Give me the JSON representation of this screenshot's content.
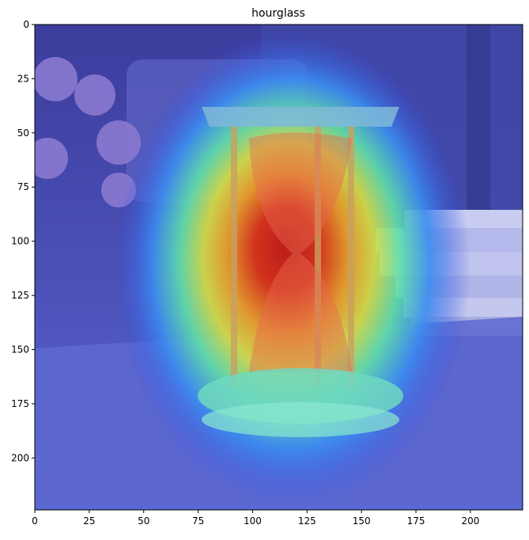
{
  "title": "hourglass",
  "image": {
    "description_icon": "hourglass-heatmap-overlay",
    "palette": {
      "background": "#5258c8",
      "heat_hot": "#d81a10",
      "heat_warm": "#f0c020",
      "heat_mid": "#5de0a0",
      "heat_cool": "#3a6ef0"
    }
  },
  "axes": {
    "x_ticks": [
      "0",
      "25",
      "50",
      "75",
      "100",
      "125",
      "150",
      "175",
      "200"
    ],
    "x_tick_values": [
      0,
      25,
      50,
      75,
      100,
      125,
      150,
      175,
      200
    ],
    "y_ticks": [
      "0",
      "25",
      "50",
      "75",
      "100",
      "125",
      "150",
      "175",
      "200"
    ],
    "y_tick_values": [
      0,
      25,
      50,
      75,
      100,
      125,
      150,
      175,
      200
    ],
    "x_range": [
      0,
      224
    ],
    "y_range": [
      0,
      224
    ],
    "y_inverted": true,
    "grid": false
  }
}
